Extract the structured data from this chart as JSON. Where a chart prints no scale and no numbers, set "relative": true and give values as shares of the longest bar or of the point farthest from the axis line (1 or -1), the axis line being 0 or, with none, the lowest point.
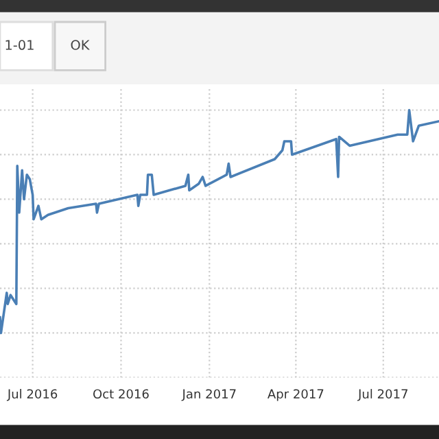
{
  "chart_data": {
    "type": "line",
    "relative": true,
    "grid": true,
    "legend": false,
    "annotations": [
      "1-01",
      "OK"
    ],
    "xlim": [
      "2016-05-28",
      "2017-08-28"
    ],
    "xticks": [
      {
        "value": "2016-07-01",
        "label": "Jul 2016"
      },
      {
        "value": "2016-10-01",
        "label": "Oct 2016"
      },
      {
        "value": "2017-01-01",
        "label": "Jan 2017"
      },
      {
        "value": "2017-04-01",
        "label": "Apr 2017"
      },
      {
        "value": "2017-07-01",
        "label": "Jul 2017"
      }
    ],
    "series": [
      {
        "color": "#4a7fb5",
        "x": [
          "2016-05-28",
          "2016-05-29",
          "2016-06-01",
          "2016-06-04",
          "2016-06-05",
          "2016-06-08",
          "2016-06-14",
          "2016-06-15",
          "2016-06-17",
          "2016-06-20",
          "2016-06-22",
          "2016-06-25",
          "2016-06-28",
          "2016-07-01",
          "2016-07-02",
          "2016-07-07",
          "2016-07-10",
          "2016-07-17",
          "2016-08-07",
          "2016-09-05",
          "2016-09-06",
          "2016-09-08",
          "2016-10-18",
          "2016-10-19",
          "2016-10-21",
          "2016-10-28",
          "2016-10-29",
          "2016-11-02",
          "2016-11-04",
          "2016-12-07",
          "2016-12-10",
          "2016-12-11",
          "2016-12-21",
          "2016-12-25",
          "2016-12-28",
          "2017-01-19",
          "2017-01-21",
          "2017-01-23",
          "2017-03-10",
          "2017-03-18",
          "2017-03-20",
          "2017-03-27",
          "2017-03-28",
          "2017-05-13",
          "2017-05-15",
          "2017-05-16",
          "2017-05-27",
          "2017-07-16",
          "2017-07-26",
          "2017-07-28",
          "2017-08-01",
          "2017-08-07",
          "2017-08-28"
        ],
        "values": [
          0.07,
          0,
          0.09,
          0.18,
          0.13,
          0.17,
          0.13,
          0.75,
          0.54,
          0.73,
          0.6,
          0.71,
          0.69,
          0.62,
          0.51,
          0.57,
          0.51,
          0.53,
          0.56,
          0.58,
          0.54,
          0.58,
          0.62,
          0.57,
          0.62,
          0.62,
          0.71,
          0.71,
          0.62,
          0.66,
          0.71,
          0.64,
          0.67,
          0.7,
          0.66,
          0.71,
          0.76,
          0.7,
          0.78,
          0.82,
          0.86,
          0.86,
          0.8,
          0.87,
          0.7,
          0.88,
          0.84,
          0.89,
          0.89,
          1,
          0.86,
          0.93,
          0.95
        ]
      }
    ]
  }
}
